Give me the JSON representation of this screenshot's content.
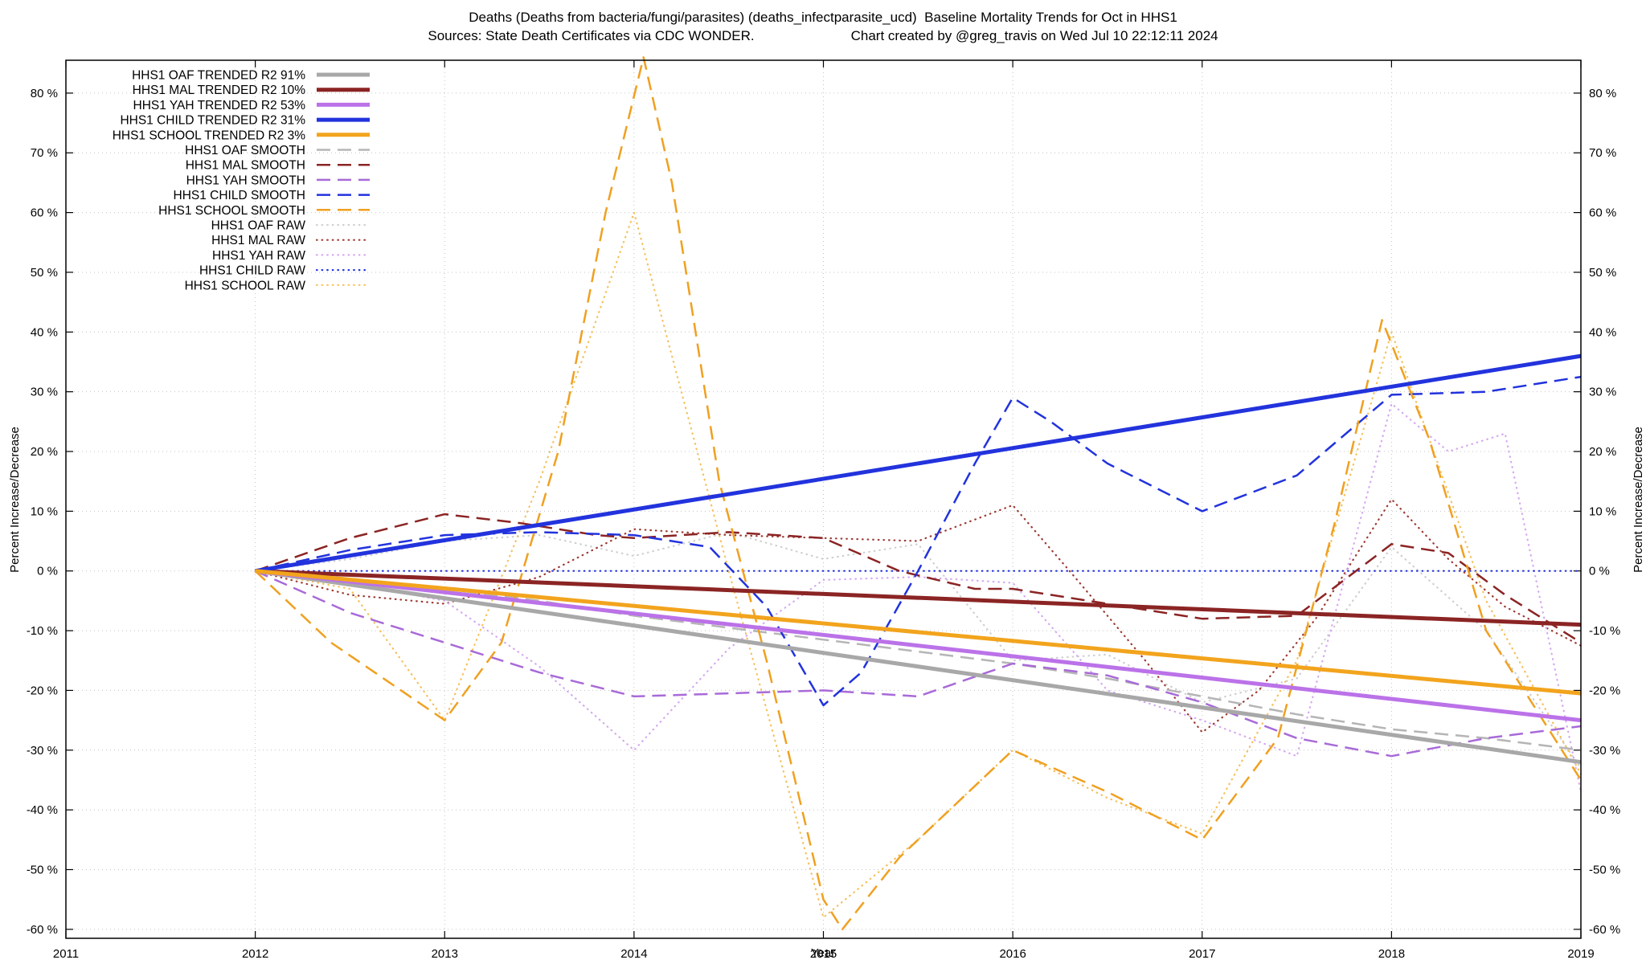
{
  "chart_data": {
    "type": "line",
    "title": "Deaths (Deaths from bacteria/fungi/parasites) (deaths_infectparasite_ucd)  Baseline Mortality Trends for Oct in HHS1",
    "subtitle_source": "Sources: State Death Certificates via CDC WONDER.",
    "subtitle_credit": "Chart created by @greg_travis on Wed Jul 10 22:12:11 2024",
    "xlabel": "Year",
    "ylabel_left": "Percent Increase/Decrease",
    "ylabel_right": "Percent Increase/Decrease",
    "x_range": [
      2011,
      2019
    ],
    "y_range": [
      -61.5,
      85.5
    ],
    "x_ticks": [
      2011,
      2012,
      2013,
      2014,
      2015,
      2016,
      2017,
      2018,
      2019
    ],
    "y_tick_values": [
      80,
      70,
      60,
      50,
      40,
      30,
      20,
      10,
      0,
      -10,
      -20,
      -30,
      -40,
      -50,
      -60
    ],
    "y_tick_labels": [
      "80 %",
      "70 %",
      "60 %",
      "50 %",
      "40 %",
      "30 %",
      "20 %",
      "10 %",
      "0 %",
      "-10 %",
      "-20 %",
      "-30 %",
      "-40 %",
      "-50 %",
      "-60 %"
    ],
    "grid": true,
    "legend_position": "top-left",
    "series": [
      {
        "name": "HHS1 OAF TRENDED",
        "legend": "HHS1 OAF TRENDED R2  91%",
        "color": "#a8a8a8",
        "style": "solid",
        "width": 5,
        "points": [
          [
            2012,
            0
          ],
          [
            2019,
            -32
          ]
        ]
      },
      {
        "name": "HHS1 MAL TRENDED",
        "legend": "HHS1 MAL TRENDED R2  10%",
        "color": "#8b2424",
        "style": "solid",
        "width": 5,
        "points": [
          [
            2012,
            0
          ],
          [
            2019,
            -9
          ]
        ]
      },
      {
        "name": "HHS1 YAH TRENDED",
        "legend": "HHS1 YAH TRENDED R2  53%",
        "color": "#bb72e8",
        "style": "solid",
        "width": 5,
        "points": [
          [
            2012,
            0
          ],
          [
            2019,
            -25
          ]
        ]
      },
      {
        "name": "HHS1 CHILD TRENDED",
        "legend": "HHS1 CHILD TRENDED R2  31%",
        "color": "#2233dd",
        "style": "solid",
        "width": 5,
        "points": [
          [
            2012,
            0
          ],
          [
            2019,
            36
          ]
        ]
      },
      {
        "name": "HHS1 SCHOOL TRENDED",
        "legend": "HHS1 SCHOOL TRENDED R2   3%",
        "color": "#f2a41d",
        "style": "solid",
        "width": 5,
        "points": [
          [
            2012,
            0
          ],
          [
            2019,
            -20.5
          ]
        ]
      },
      {
        "name": "HHS1 OAF SMOOTH",
        "legend": "HHS1 OAF SMOOTH",
        "color": "#b5b5b5",
        "style": "dashed",
        "width": 2.5,
        "points": [
          [
            2012,
            0
          ],
          [
            2012.5,
            -1.5
          ],
          [
            2013,
            -3
          ],
          [
            2013.5,
            -5
          ],
          [
            2014,
            -7.5
          ],
          [
            2014.5,
            -9.5
          ],
          [
            2015,
            -11.5
          ],
          [
            2015.5,
            -13.5
          ],
          [
            2016,
            -15.5
          ],
          [
            2016.5,
            -18
          ],
          [
            2017,
            -21
          ],
          [
            2017.5,
            -24
          ],
          [
            2018,
            -26.5
          ],
          [
            2018.5,
            -28
          ],
          [
            2019,
            -30
          ]
        ]
      },
      {
        "name": "HHS1 MAL SMOOTH",
        "legend": "HHS1 MAL SMOOTH",
        "color": "#8b2424",
        "style": "dashed",
        "width": 2.5,
        "points": [
          [
            2012,
            0
          ],
          [
            2012.5,
            5.5
          ],
          [
            2013,
            9.5
          ],
          [
            2013.4,
            8
          ],
          [
            2013.8,
            6
          ],
          [
            2014,
            5.5
          ],
          [
            2014.5,
            6.5
          ],
          [
            2015,
            5.5
          ],
          [
            2015.4,
            0
          ],
          [
            2015.8,
            -3
          ],
          [
            2016,
            -3
          ],
          [
            2016.5,
            -5.5
          ],
          [
            2017,
            -8
          ],
          [
            2017.5,
            -7.5
          ],
          [
            2018,
            4.5
          ],
          [
            2018.3,
            3
          ],
          [
            2018.6,
            -4
          ],
          [
            2019,
            -12
          ]
        ]
      },
      {
        "name": "HHS1 YAH SMOOTH",
        "legend": "HHS1 YAH SMOOTH",
        "color": "#a86ad8",
        "style": "dashed",
        "width": 2.5,
        "points": [
          [
            2012,
            0
          ],
          [
            2012.5,
            -7
          ],
          [
            2013,
            -12
          ],
          [
            2013.5,
            -17
          ],
          [
            2014,
            -21
          ],
          [
            2014.5,
            -20.5
          ],
          [
            2015,
            -20
          ],
          [
            2015.5,
            -21
          ],
          [
            2016,
            -15.5
          ],
          [
            2016.5,
            -17.5
          ],
          [
            2017,
            -22
          ],
          [
            2017.5,
            -28
          ],
          [
            2018,
            -31
          ],
          [
            2018.5,
            -28
          ],
          [
            2019,
            -26
          ]
        ]
      },
      {
        "name": "HHS1 CHILD SMOOTH",
        "legend": "HHS1 CHILD SMOOTH",
        "color": "#2233dd",
        "style": "dashed",
        "width": 2.5,
        "points": [
          [
            2012,
            0
          ],
          [
            2012.5,
            3.5
          ],
          [
            2013,
            6
          ],
          [
            2013.5,
            6.5
          ],
          [
            2014,
            6
          ],
          [
            2014.4,
            4
          ],
          [
            2014.7,
            -6
          ],
          [
            2015,
            -22.5
          ],
          [
            2015.2,
            -17
          ],
          [
            2015.5,
            0
          ],
          [
            2015.8,
            18
          ],
          [
            2016,
            29
          ],
          [
            2016.2,
            25
          ],
          [
            2016.5,
            18
          ],
          [
            2017,
            10
          ],
          [
            2017.5,
            16
          ],
          [
            2018,
            29.5
          ],
          [
            2018.5,
            30
          ],
          [
            2019,
            32.5
          ]
        ]
      },
      {
        "name": "HHS1 SCHOOL SMOOTH",
        "legend": "HHS1 SCHOOL SMOOTH",
        "color": "#f0a020",
        "style": "dashed",
        "width": 2.5,
        "points": [
          [
            2012,
            0
          ],
          [
            2012.4,
            -12
          ],
          [
            2013,
            -25
          ],
          [
            2013.3,
            -12
          ],
          [
            2013.6,
            20
          ],
          [
            2013.85,
            60
          ],
          [
            2014.05,
            86
          ],
          [
            2014.2,
            65
          ],
          [
            2014.45,
            15
          ],
          [
            2014.7,
            -15
          ],
          [
            2015,
            -55
          ],
          [
            2015.1,
            -60
          ],
          [
            2015.4,
            -48
          ],
          [
            2016,
            -30
          ],
          [
            2016.5,
            -37
          ],
          [
            2017,
            -45
          ],
          [
            2017.4,
            -28
          ],
          [
            2017.7,
            8
          ],
          [
            2017.95,
            42
          ],
          [
            2018.2,
            22
          ],
          [
            2018.5,
            -10
          ],
          [
            2019,
            -35
          ]
        ]
      },
      {
        "name": "HHS1 OAF RAW",
        "legend": "HHS1 OAF RAW",
        "color": "#cfcfcf",
        "style": "dotted",
        "width": 2.2,
        "points": [
          [
            2012,
            0
          ],
          [
            2012.5,
            2
          ],
          [
            2013,
            5
          ],
          [
            2013.5,
            6
          ],
          [
            2014,
            2.5
          ],
          [
            2014.5,
            6.5
          ],
          [
            2015,
            2
          ],
          [
            2015.5,
            4.5
          ],
          [
            2016,
            -15
          ],
          [
            2016.5,
            -14
          ],
          [
            2017,
            -22
          ],
          [
            2017.5,
            -18
          ],
          [
            2018,
            4
          ],
          [
            2018.5,
            -10
          ],
          [
            2019,
            -33
          ]
        ]
      },
      {
        "name": "HHS1 MAL RAW",
        "legend": "HHS1 MAL RAW",
        "color": "#9c3a32",
        "style": "dotted",
        "width": 2.2,
        "points": [
          [
            2012,
            0
          ],
          [
            2012.5,
            -4
          ],
          [
            2013,
            -5.5
          ],
          [
            2013.5,
            -1
          ],
          [
            2014,
            7
          ],
          [
            2014.5,
            6
          ],
          [
            2015,
            5.5
          ],
          [
            2015.5,
            5
          ],
          [
            2016,
            11
          ],
          [
            2016.3,
            0
          ],
          [
            2016.7,
            -15
          ],
          [
            2017,
            -27
          ],
          [
            2017.3,
            -20
          ],
          [
            2017.6,
            -8
          ],
          [
            2018,
            12
          ],
          [
            2018.3,
            2
          ],
          [
            2018.6,
            -6
          ],
          [
            2019,
            -12.5
          ]
        ]
      },
      {
        "name": "HHS1 YAH RAW",
        "legend": "HHS1 YAH RAW",
        "color": "#d4a9f0",
        "style": "dotted",
        "width": 2.2,
        "points": [
          [
            2012,
            0
          ],
          [
            2012.5,
            -2
          ],
          [
            2013,
            -5
          ],
          [
            2013.5,
            -16
          ],
          [
            2014,
            -30
          ],
          [
            2014.5,
            -13
          ],
          [
            2015,
            -1.5
          ],
          [
            2015.5,
            -1
          ],
          [
            2016,
            -2
          ],
          [
            2016.5,
            -20
          ],
          [
            2017,
            -25
          ],
          [
            2017.5,
            -31
          ],
          [
            2018,
            28
          ],
          [
            2018.3,
            20
          ],
          [
            2018.6,
            23
          ],
          [
            2019,
            -37
          ]
        ]
      },
      {
        "name": "HHS1 CHILD RAW",
        "legend": "HHS1 CHILD RAW",
        "color": "#2233dd",
        "style": "dotted",
        "width": 2.2,
        "points": [
          [
            2012,
            0
          ],
          [
            2019,
            0
          ]
        ]
      },
      {
        "name": "HHS1 SCHOOL RAW",
        "legend": "HHS1 SCHOOL RAW",
        "color": "#f6c05c",
        "style": "dotted",
        "width": 2.2,
        "points": [
          [
            2012,
            0
          ],
          [
            2012.5,
            -3
          ],
          [
            2013,
            -25
          ],
          [
            2013.5,
            15
          ],
          [
            2014,
            60
          ],
          [
            2014.5,
            0
          ],
          [
            2015,
            -58
          ],
          [
            2015.5,
            -45
          ],
          [
            2016,
            -30
          ],
          [
            2016.5,
            -38
          ],
          [
            2017,
            -44
          ],
          [
            2017.5,
            -15
          ],
          [
            2018,
            40
          ],
          [
            2018.5,
            -5
          ],
          [
            2019,
            -34
          ]
        ]
      }
    ]
  }
}
